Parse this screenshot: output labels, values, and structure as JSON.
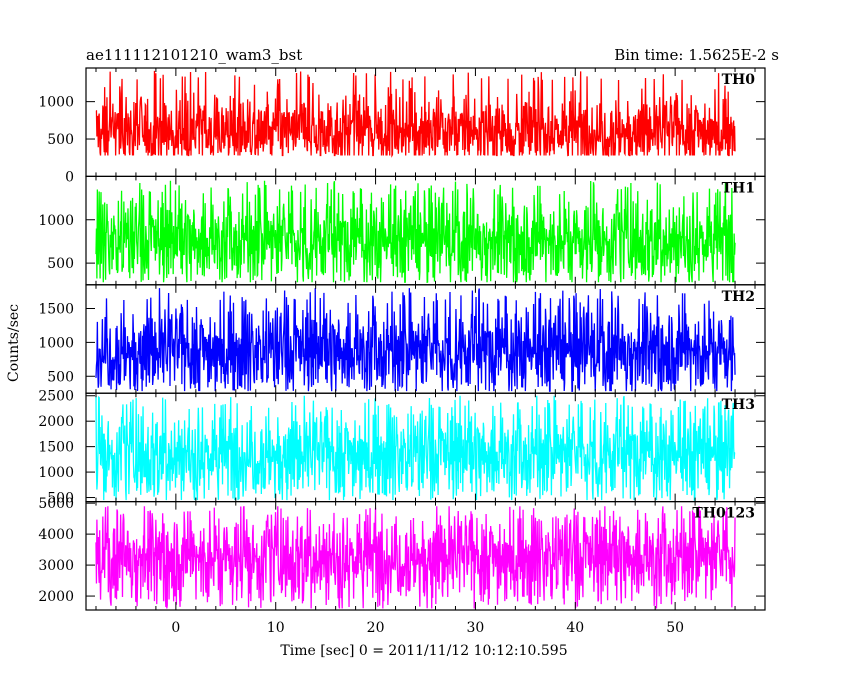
{
  "header": {
    "title": "ae111112101210_wam3_bst",
    "bin_time": "Bin time: 1.5625E-2 s"
  },
  "chart_data": {
    "type": "line",
    "xlabel": "Time [sec] 0 = 2011/11/12 10:12:10.595",
    "ylabel": "Counts/sec",
    "xlim": [
      -9,
      59
    ],
    "xticks": [
      0,
      10,
      20,
      30,
      40,
      50
    ],
    "data_x_range": [
      -8,
      56
    ],
    "bin_time_s": 0.015625,
    "panels": [
      {
        "name": "TH0",
        "color": "#ff0000",
        "ylim": [
          0,
          1450
        ],
        "yticks": [
          0,
          500,
          1000
        ],
        "mean": 620,
        "min": 280,
        "max": 1420
      },
      {
        "name": "TH1",
        "color": "#00ff00",
        "ylim": [
          250,
          1500
        ],
        "yticks": [
          500,
          1000
        ],
        "mean": 780,
        "min": 280,
        "max": 1450
      },
      {
        "name": "TH2",
        "color": "#0000ff",
        "ylim": [
          250,
          1850
        ],
        "yticks": [
          500,
          1000,
          1500
        ],
        "mean": 900,
        "min": 280,
        "max": 1800
      },
      {
        "name": "TH3",
        "color": "#00ffff",
        "ylim": [
          420,
          2550
        ],
        "yticks": [
          500,
          1000,
          1500,
          2000,
          2500
        ],
        "mean": 1380,
        "min": 450,
        "max": 2500
      },
      {
        "name": "TH0123",
        "color": "#ff00ff",
        "ylim": [
          1550,
          5050
        ],
        "yticks": [
          2000,
          3000,
          4000,
          5000
        ],
        "mean": 3300,
        "min": 1600,
        "max": 4900
      }
    ]
  }
}
